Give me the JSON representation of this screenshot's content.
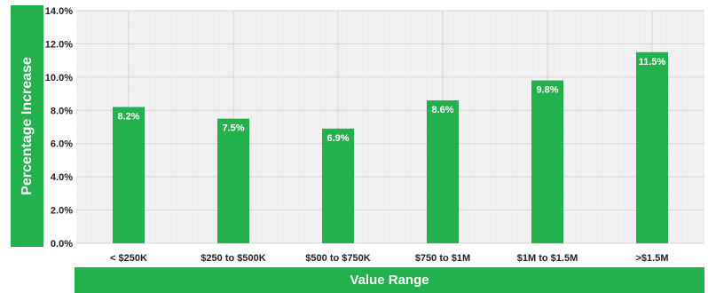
{
  "chart_data": {
    "type": "bar",
    "categories": [
      "< $250K",
      "$250 to $500K",
      "$500 to $750K",
      "$750 to $1M",
      "$1M to $1.5M",
      ">$1.5M"
    ],
    "values": [
      8.2,
      7.5,
      6.9,
      8.6,
      9.8,
      11.5
    ],
    "data_labels": [
      "8.2%",
      "7.5%",
      "6.9%",
      "8.6%",
      "9.8%",
      "11.5%"
    ],
    "ylabel": "Percentage Increase",
    "xlabel": "Value Range",
    "ylim": [
      0,
      14
    ],
    "yticks": [
      0,
      2,
      4,
      6,
      8,
      10,
      12,
      14
    ],
    "ytick_labels": [
      "0.0%",
      "2.0%",
      "4.0%",
      "6.0%",
      "8.0%",
      "10.0%",
      "12.0%",
      "14.0%"
    ],
    "grid": true,
    "colors": {
      "bar": "#22b14c",
      "label_bg": "#22b14c",
      "plot_bg": "#f2f2f2",
      "grid": "#d4d4d4"
    }
  }
}
